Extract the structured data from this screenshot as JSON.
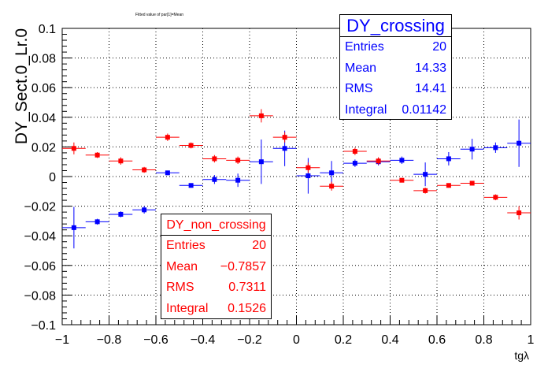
{
  "chart_data": {
    "type": "scatter",
    "title": "Fitted value of par[1]=Mean",
    "xlabel": "tgλ",
    "ylabel": "DY_Sect.0_Lr.0",
    "xlim": [
      -1,
      1
    ],
    "ylim": [
      -0.1,
      0.1
    ],
    "grid": true,
    "x_ticks": [
      -1,
      -0.8,
      -0.6,
      -0.4,
      -0.2,
      0,
      0.2,
      0.4,
      0.6,
      0.8,
      1
    ],
    "x_tick_labels": [
      "−1",
      "−0.8",
      "−0.6",
      "−0.4",
      "−0.2",
      "0",
      "0.2",
      "0.4",
      "0.6",
      "0.8",
      "1"
    ],
    "y_ticks": [
      -0.1,
      -0.08,
      -0.06,
      -0.04,
      -0.02,
      0,
      0.02,
      0.04,
      0.06,
      0.08,
      0.1
    ],
    "y_tick_labels": [
      "−0.1",
      "−0.08",
      "−0.06",
      "−0.04",
      "−0.02",
      "0",
      "0.02",
      "0.04",
      "0.06",
      "0.08",
      "0.1"
    ],
    "x_halfwidth": 0.05,
    "series": [
      {
        "name": "DY_crossing",
        "color": "#0000ff",
        "x": [
          -0.95,
          -0.85,
          -0.75,
          -0.65,
          -0.55,
          -0.45,
          -0.35,
          -0.25,
          -0.15,
          -0.05,
          0.05,
          0.15,
          0.25,
          0.35,
          0.45,
          0.55,
          0.65,
          0.75,
          0.85,
          0.95
        ],
        "y": [
          -0.0345,
          -0.0305,
          -0.0255,
          -0.0225,
          0.0025,
          -0.006,
          -0.002,
          -0.0025,
          0.01,
          0.019,
          0.0005,
          0.0025,
          0.009,
          0.01,
          0.011,
          0.0015,
          0.012,
          0.0185,
          0.0195,
          0.0225
        ],
        "yerr": [
          0.014,
          0.002,
          0.002,
          0.0025,
          0.0015,
          0.0015,
          0.003,
          0.0045,
          0.015,
          0.012,
          0.012,
          0.008,
          0.0025,
          0.0025,
          0.0025,
          0.008,
          0.0045,
          0.007,
          0.0035,
          0.016
        ]
      },
      {
        "name": "DY_non_crossing",
        "color": "#ff0000",
        "x": [
          -0.95,
          -0.85,
          -0.75,
          -0.65,
          -0.55,
          -0.45,
          -0.35,
          -0.25,
          -0.15,
          -0.05,
          0.05,
          0.15,
          0.25,
          0.35,
          0.45,
          0.55,
          0.65,
          0.75,
          0.85,
          0.95
        ],
        "y": [
          0.019,
          0.0145,
          0.0105,
          0.0045,
          0.0265,
          0.021,
          0.012,
          0.011,
          0.041,
          0.0265,
          0.006,
          -0.0065,
          0.017,
          0.0105,
          -0.0025,
          -0.0095,
          -0.006,
          -0.0045,
          -0.014,
          -0.0245
        ],
        "yerr": [
          0.004,
          0.002,
          0.0025,
          0.002,
          0.0025,
          0.002,
          0.0025,
          0.0025,
          0.0045,
          0.0035,
          0.0035,
          0.003,
          0.0025,
          0.0025,
          0.0015,
          0.002,
          0.0015,
          0.0015,
          0.002,
          0.0045
        ]
      }
    ]
  },
  "stats": {
    "crossing": {
      "title": "DY_crossing",
      "rows": [
        {
          "label": "Entries",
          "value": "20"
        },
        {
          "label": "Mean",
          "value": "14.33"
        },
        {
          "label": "RMS",
          "value": "14.41"
        },
        {
          "label": "Integral",
          "value": "0.01142"
        }
      ]
    },
    "non_crossing": {
      "title": "DY_non_crossing",
      "rows": [
        {
          "label": "Entries",
          "value": "20"
        },
        {
          "label": "Mean",
          "value": "−0.7857"
        },
        {
          "label": "RMS",
          "value": "0.7311"
        },
        {
          "label": "Integral",
          "value": "0.1526"
        }
      ]
    }
  }
}
